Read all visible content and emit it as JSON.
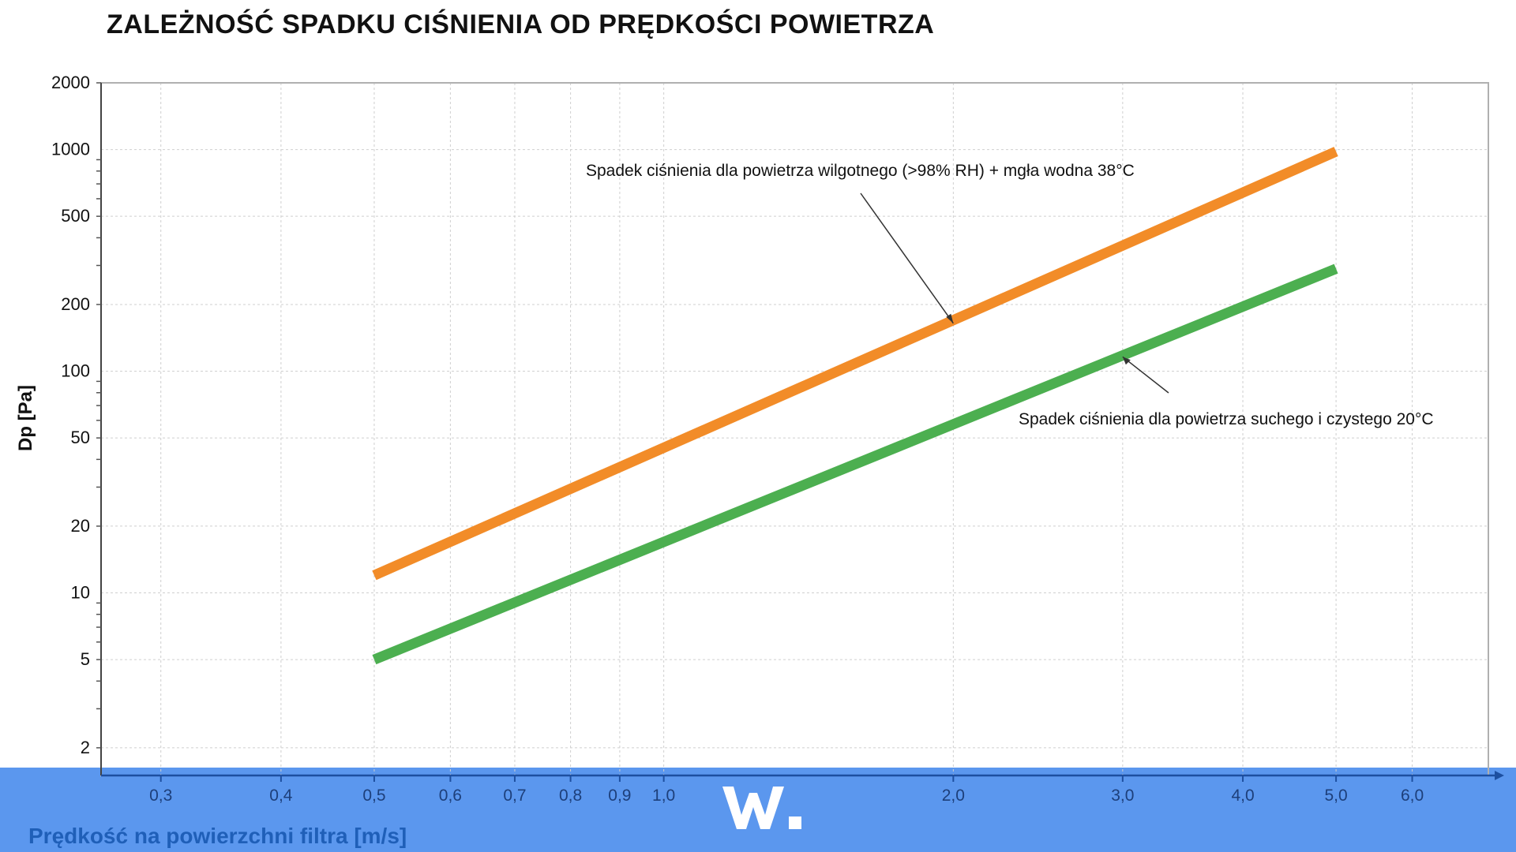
{
  "title": "ZALEŻNOŚĆ SPADKU CIŚNIENIA OD PRĘDKOŚCI POWIETRZA",
  "chart_data": {
    "type": "line",
    "xscale": "log",
    "yscale": "log",
    "xlabel": "Prędkość na powierzchni filtra [m/s]",
    "ylabel": "Dp [Pa]",
    "xlim": [
      0.26,
      7.2
    ],
    "ylim": [
      1.5,
      2000
    ],
    "grid": true,
    "xticks": [
      {
        "value": 0.3,
        "label": "0,3"
      },
      {
        "value": 0.4,
        "label": "0,4"
      },
      {
        "value": 0.5,
        "label": "0,5"
      },
      {
        "value": 0.6,
        "label": "0,6"
      },
      {
        "value": 0.7,
        "label": "0,7"
      },
      {
        "value": 0.8,
        "label": "0,8"
      },
      {
        "value": 0.9,
        "label": "0,9"
      },
      {
        "value": 1.0,
        "label": "1,0"
      },
      {
        "value": 2.0,
        "label": "2,0"
      },
      {
        "value": 3.0,
        "label": "3,0"
      },
      {
        "value": 4.0,
        "label": "4,0"
      },
      {
        "value": 5.0,
        "label": "5,0"
      },
      {
        "value": 6.0,
        "label": "6,0"
      }
    ],
    "yticks": [
      {
        "value": 2,
        "label": "2"
      },
      {
        "value": 5,
        "label": "5"
      },
      {
        "value": 10,
        "label": "10"
      },
      {
        "value": 20,
        "label": "20"
      },
      {
        "value": 50,
        "label": "50"
      },
      {
        "value": 100,
        "label": "100"
      },
      {
        "value": 200,
        "label": "200"
      },
      {
        "value": 500,
        "label": "500"
      },
      {
        "value": 1000,
        "label": "1000"
      },
      {
        "value": 2000,
        "label": "2000"
      }
    ],
    "series": [
      {
        "color": "#f28c28",
        "x": [
          0.5,
          5.0
        ],
        "y": [
          12,
          980
        ]
      },
      {
        "color": "#4caf50",
        "x": [
          0.5,
          5.0
        ],
        "y": [
          5,
          290
        ]
      }
    ],
    "annotations": [
      {
        "text": "Spadek ciśnienia dla powietrza wilgotnego (>98% RH) + mgła wodna 38°C",
        "point": [
          2.0,
          170
        ]
      },
      {
        "text": "Spadek ciśnienia dla powietrza suchego i czystego 20°C",
        "point": [
          3.0,
          120
        ]
      }
    ]
  },
  "logo": {
    "text": "W."
  }
}
